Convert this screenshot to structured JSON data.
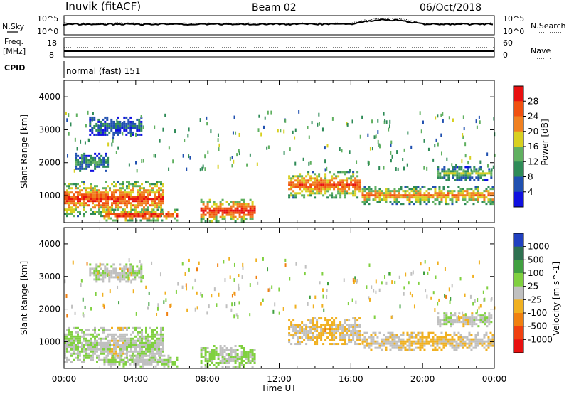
{
  "header": {
    "station": "Inuvik (fitACF)",
    "beam": "Beam 02",
    "date": "06/Oct/2018"
  },
  "status_panels": {
    "nsky_label": "N.Sky",
    "nsky_ticks": [
      "10^5",
      "10^0"
    ],
    "nsearch_label": "N.Search",
    "nsearch_ticks": [
      "10^5",
      "10^0"
    ],
    "freq_label": "Freq.",
    "freq_unit": "[MHz]",
    "freq_ticks": [
      "18",
      "8"
    ],
    "nave_label": "Nave",
    "nave_ticks": [
      "60",
      "0"
    ],
    "cpid_label": "CPID",
    "cpid_value": "normal (fast) 151"
  },
  "colors": {
    "power_scale": [
      "#1010e0",
      "#2050b0",
      "#2e8b57",
      "#60b060",
      "#d8d020",
      "#f08020",
      "#f05010",
      "#e81010"
    ],
    "velocity_scale": [
      "#2040c0",
      "#2e7050",
      "#40a040",
      "#80d040",
      "#c0c0c0",
      "#f0b020",
      "#f08010",
      "#f04010",
      "#e81010"
    ]
  },
  "chart_data": [
    {
      "type": "heatmap",
      "name": "power",
      "xlabel": "",
      "ylabel": "Slant Range [km]",
      "x_ticks": [
        "00:00",
        "04:00",
        "08:00",
        "12:00",
        "16:00",
        "20:00",
        "00:00"
      ],
      "y_ticks": [
        "1000",
        "2000",
        "3000",
        "4000"
      ],
      "ylim": [
        180,
        4500
      ],
      "xlim_hours": [
        0,
        24
      ],
      "colorbar": {
        "label": "Power [dB]",
        "ticks": [
          "4",
          "8",
          "12",
          "16",
          "20",
          "24",
          "28"
        ],
        "range": [
          0,
          30
        ]
      },
      "echo_bands": [
        {
          "t0": 0.0,
          "t1": 5.6,
          "r0": 300,
          "r1": 1450,
          "peak": 26
        },
        {
          "t0": 2.2,
          "t1": 6.4,
          "r0": 180,
          "r1": 600,
          "peak": 28
        },
        {
          "t0": 7.6,
          "t1": 10.8,
          "r0": 180,
          "r1": 900,
          "peak": 29
        },
        {
          "t0": 12.5,
          "t1": 16.6,
          "r0": 850,
          "r1": 1750,
          "peak": 24
        },
        {
          "t0": 16.6,
          "t1": 24.0,
          "r0": 700,
          "r1": 1300,
          "peak": 22
        },
        {
          "t0": 20.8,
          "t1": 24.0,
          "r0": 1400,
          "r1": 1900,
          "peak": 14
        },
        {
          "t0": 1.4,
          "t1": 4.4,
          "r0": 2800,
          "r1": 3400,
          "peak": 8
        },
        {
          "t0": 0.6,
          "t1": 2.6,
          "r0": 1700,
          "r1": 2300,
          "peak": 10
        }
      ]
    },
    {
      "type": "heatmap",
      "name": "velocity",
      "xlabel": "Time UT",
      "ylabel": "Slant Range [km]",
      "x_ticks": [
        "00:00",
        "04:00",
        "08:00",
        "12:00",
        "16:00",
        "20:00",
        "00:00"
      ],
      "y_ticks": [
        "1000",
        "2000",
        "3000",
        "4000"
      ],
      "ylim": [
        180,
        4500
      ],
      "xlim_hours": [
        0,
        24
      ],
      "colorbar": {
        "label": "Velocity [m s^-1]",
        "ticks": [
          "1000",
          "500",
          "100",
          "25",
          "-25",
          "-100",
          "-500",
          "-1000"
        ],
        "range": [
          -1000,
          1000
        ]
      },
      "echo_bands": [
        {
          "t0": 0.0,
          "t1": 5.6,
          "r0": 300,
          "r1": 1450,
          "peak": 60
        },
        {
          "t0": 2.2,
          "t1": 6.4,
          "r0": 180,
          "r1": 600,
          "peak": 80
        },
        {
          "t0": 7.6,
          "t1": 10.8,
          "r0": 180,
          "r1": 900,
          "peak": 120
        },
        {
          "t0": 12.5,
          "t1": 16.6,
          "r0": 850,
          "r1": 1750,
          "peak": -150
        },
        {
          "t0": 16.6,
          "t1": 24.0,
          "r0": 700,
          "r1": 1300,
          "peak": -120
        },
        {
          "t0": 20.8,
          "t1": 24.0,
          "r0": 1400,
          "r1": 1900,
          "peak": 0
        },
        {
          "t0": 1.4,
          "t1": 4.4,
          "r0": 2800,
          "r1": 3400,
          "peak": 40
        }
      ]
    }
  ]
}
